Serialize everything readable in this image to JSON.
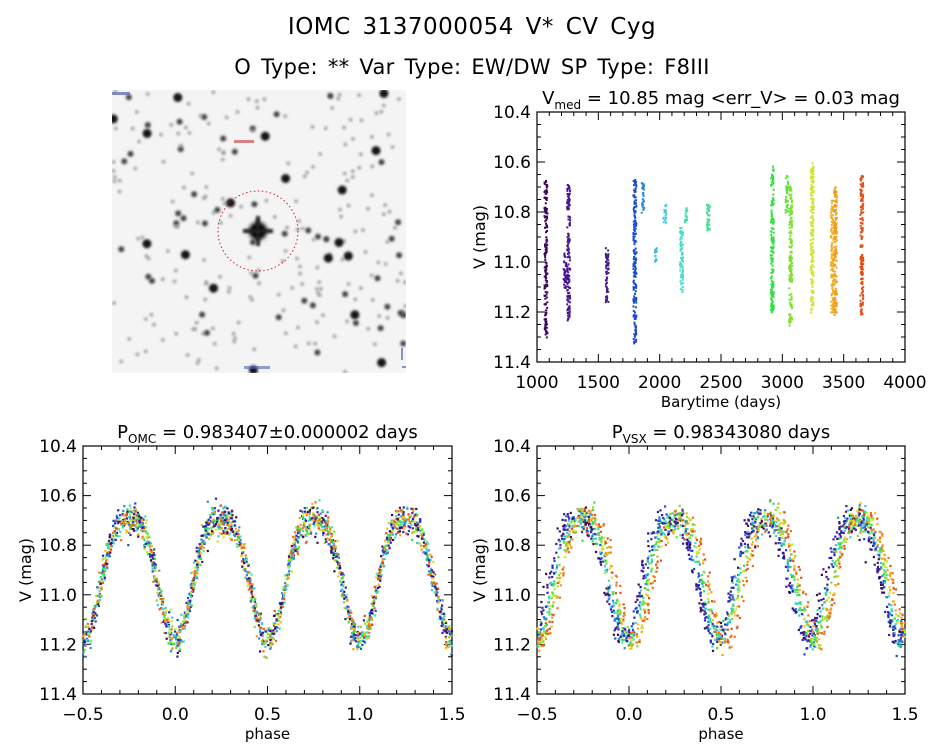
{
  "header": {
    "title_line1": "IOMC 3137000054    V* CV Cyg",
    "title_line2": "O Type: **  Var Type: EW/DW  SP Type: F8III"
  },
  "sky_image": {
    "description": "grayscale star field finder chart",
    "target_marker_color": "#cc2222",
    "corner_labels_legible": false
  },
  "chart_data": [
    {
      "id": "lightcurve",
      "type": "scatter",
      "title_main": "V",
      "title_sub": "med",
      "title_rest": " = 10.85 mag <err_V> = 0.03 mag",
      "xlabel": "Barytime (days)",
      "ylabel": "V (mag)",
      "xlim": [
        1000,
        4000
      ],
      "ylim": [
        11.4,
        10.4
      ],
      "y_inverted": true,
      "xticks": [
        1000,
        1500,
        2000,
        2500,
        3000,
        3500,
        4000
      ],
      "xtick_labels": [
        "1000",
        "1500",
        "2000",
        "2500",
        "3000",
        "3500",
        "4000"
      ],
      "yticks": [
        10.4,
        10.6,
        10.8,
        11.0,
        11.2,
        11.4
      ],
      "ytick_labels": [
        "10.4",
        "10.6",
        "10.8",
        "11.0",
        "11.2",
        "11.4"
      ],
      "grid": false,
      "series": [
        {
          "name": "epoch-1",
          "color": "#3a0a5a",
          "x": 1065,
          "vmin": 10.67,
          "vmax": 11.3
        },
        {
          "name": "epoch-2",
          "color": "#4a1590",
          "x": 1250,
          "vmin": 10.68,
          "vmax": 11.23
        },
        {
          "name": "epoch-2b",
          "color": "#4a1590",
          "x": 1220,
          "vmin": 10.96,
          "vmax": 11.1
        },
        {
          "name": "epoch-3",
          "color": "#4a1a8a",
          "x": 1565,
          "vmin": 10.94,
          "vmax": 11.16
        },
        {
          "name": "epoch-4",
          "color": "#1a4ad0",
          "x": 1790,
          "vmin": 10.66,
          "vmax": 11.33
        },
        {
          "name": "epoch-5",
          "color": "#2a8ad8",
          "x": 1855,
          "vmin": 10.68,
          "vmax": 10.8
        },
        {
          "name": "epoch-6a",
          "color": "#40b8e0",
          "x": 1965,
          "vmin": 10.94,
          "vmax": 11.0
        },
        {
          "name": "epoch-6b",
          "color": "#40d0e0",
          "x": 2035,
          "vmin": 10.76,
          "vmax": 10.84
        },
        {
          "name": "epoch-7",
          "color": "#40e0c8",
          "x": 2170,
          "vmin": 10.86,
          "vmax": 11.12
        },
        {
          "name": "epoch-7b",
          "color": "#40e0b0",
          "x": 2205,
          "vmin": 10.78,
          "vmax": 10.84
        },
        {
          "name": "epoch-8",
          "color": "#40e090",
          "x": 2390,
          "vmin": 10.76,
          "vmax": 10.87
        },
        {
          "name": "epoch-9",
          "color": "#30e040",
          "x": 2910,
          "vmin": 10.61,
          "vmax": 11.2
        },
        {
          "name": "epoch-10a",
          "color": "#60e040",
          "x": 3030,
          "vmin": 10.65,
          "vmax": 10.8
        },
        {
          "name": "epoch-10b",
          "color": "#80e030",
          "x": 3060,
          "vmin": 10.69,
          "vmax": 11.25
        },
        {
          "name": "epoch-11",
          "color": "#c8e830",
          "x": 3235,
          "vmin": 10.6,
          "vmax": 11.2
        },
        {
          "name": "epoch-12a",
          "color": "#f0b020",
          "x": 3400,
          "vmin": 10.75,
          "vmax": 11.2
        },
        {
          "name": "epoch-12b",
          "color": "#f0a020",
          "x": 3425,
          "vmin": 10.69,
          "vmax": 11.21
        },
        {
          "name": "epoch-13",
          "color": "#e05018",
          "x": 3640,
          "vmin": 10.65,
          "vmax": 11.21
        }
      ]
    },
    {
      "id": "phase-omc",
      "type": "scatter",
      "title_main": "P",
      "title_sub": "OMC",
      "title_rest": " = 0.983407±0.000002 days",
      "xlabel": "phase",
      "ylabel": "V (mag)",
      "xlim": [
        -0.5,
        1.5
      ],
      "ylim": [
        11.4,
        10.4
      ],
      "y_inverted": true,
      "xticks": [
        -0.5,
        0.0,
        0.5,
        1.0,
        1.5
      ],
      "xtick_labels": [
        "−0.5",
        "0.0",
        "0.5",
        "1.0",
        "1.5"
      ],
      "yticks": [
        10.4,
        10.6,
        10.8,
        11.0,
        11.2,
        11.4
      ],
      "ytick_labels": [
        "10.4",
        "10.6",
        "10.8",
        "11.0",
        "11.2",
        "11.4"
      ],
      "grid": false,
      "curve": {
        "max_mag": 10.7,
        "min_mag": 11.18,
        "primary_min_phase": 0.0,
        "secondary_min_phase": 0.5,
        "scatter": 0.03,
        "phase_shift_by_epoch": 0.0
      }
    },
    {
      "id": "phase-vsx",
      "type": "scatter",
      "title_main": "P",
      "title_sub": "VSX",
      "title_rest": " = 0.98343080 days",
      "xlabel": "phase",
      "ylabel": "V (mag)",
      "xlim": [
        -0.5,
        1.5
      ],
      "ylim": [
        11.4,
        10.4
      ],
      "y_inverted": true,
      "xticks": [
        -0.5,
        0.0,
        0.5,
        1.0,
        1.5
      ],
      "xtick_labels": [
        "−0.5",
        "0.0",
        "0.5",
        "1.0",
        "1.5"
      ],
      "yticks": [
        10.4,
        10.6,
        10.8,
        11.0,
        11.2,
        11.4
      ],
      "ytick_labels": [
        "10.4",
        "10.6",
        "10.8",
        "11.0",
        "11.2",
        "11.4"
      ],
      "grid": false,
      "curve": {
        "max_mag": 10.7,
        "min_mag": 11.18,
        "primary_min_phase": 0.0,
        "secondary_min_phase": 0.5,
        "scatter": 0.03,
        "phase_shift_by_epoch": 0.08
      }
    }
  ],
  "epoch_colors": [
    "#3a0a5a",
    "#4a1590",
    "#3020b0",
    "#1a4ad0",
    "#2a8ad8",
    "#40c8e0",
    "#40e0b0",
    "#30e040",
    "#80e030",
    "#c8e830",
    "#f0c020",
    "#f0a020",
    "#e05018",
    "#f07020"
  ]
}
